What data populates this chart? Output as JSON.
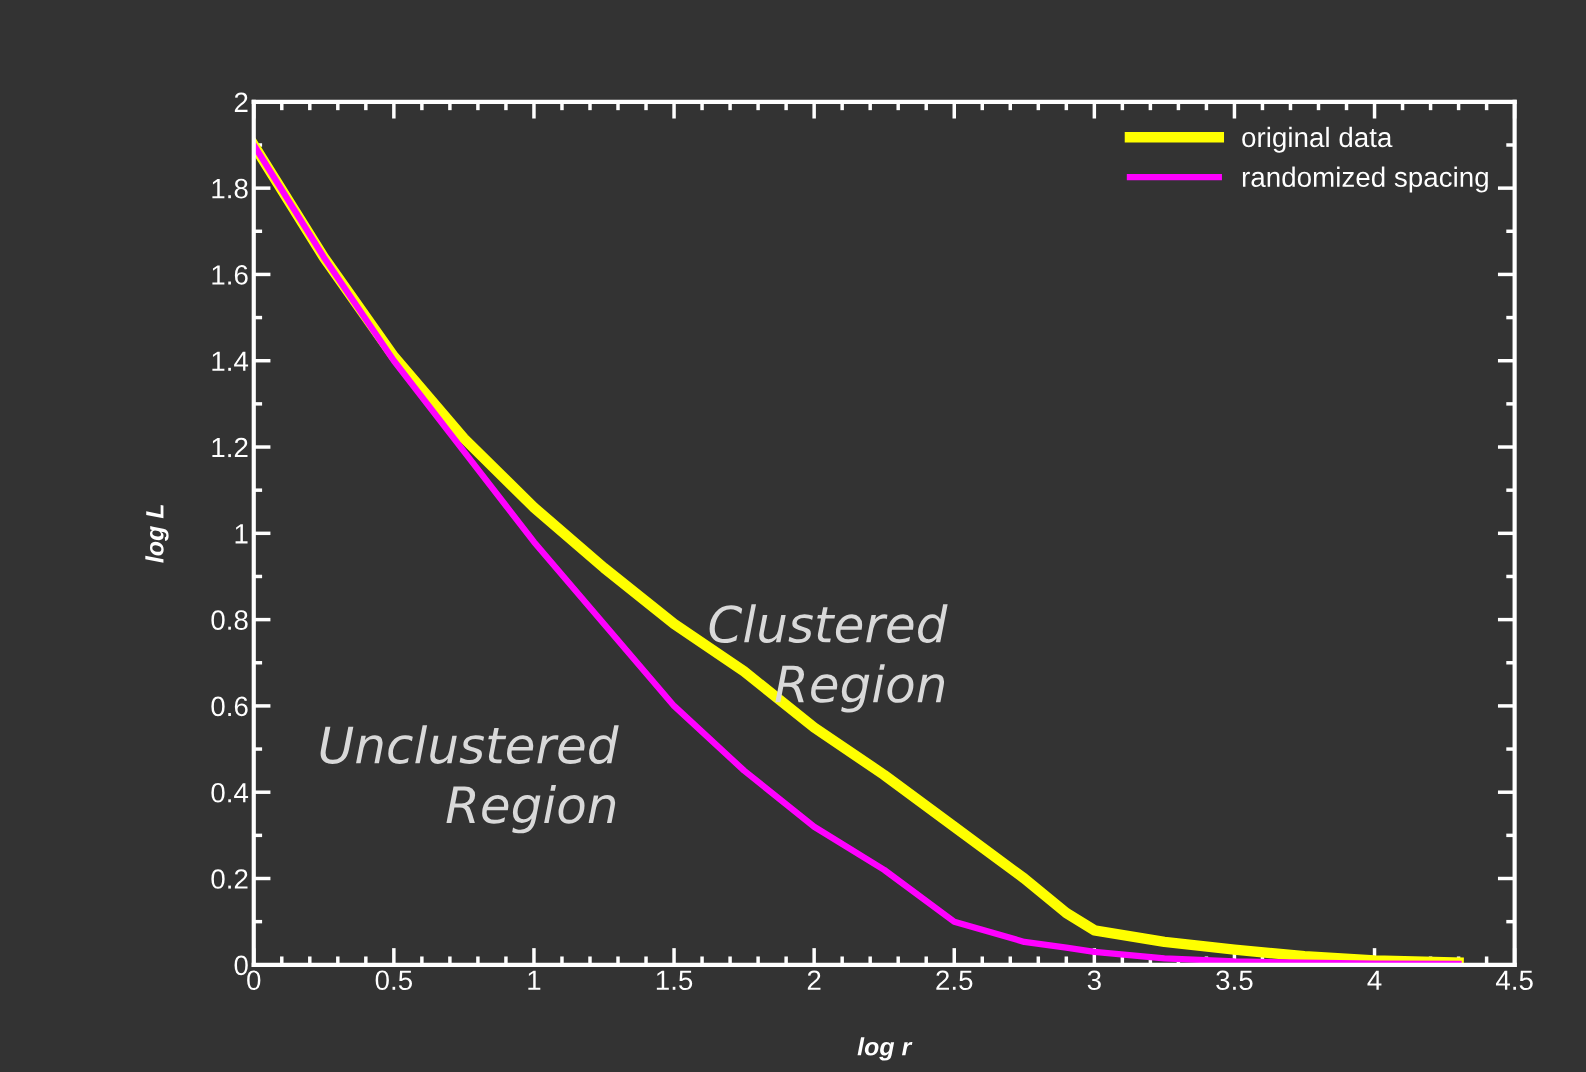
{
  "chart_data": {
    "type": "line",
    "xlabel": "log r",
    "ylabel": "log L",
    "xlim": [
      0,
      4.5
    ],
    "xticks": [
      0,
      0.5,
      1,
      1.5,
      2,
      2.5,
      3,
      3.5,
      4,
      4.5
    ],
    "ylim": [
      0,
      2
    ],
    "yticks": [
      0,
      0.2,
      0.4,
      0.6,
      0.8,
      1,
      1.2,
      1.4,
      1.6,
      1.8,
      2
    ],
    "x": [
      0,
      0.25,
      0.5,
      0.75,
      1,
      1.25,
      1.5,
      1.75,
      2,
      2.25,
      2.5,
      2.75,
      2.9,
      3,
      3.25,
      3.5,
      3.75,
      4,
      4.3
    ],
    "series": [
      {
        "name": "original data",
        "color": "#ffff00",
        "values": [
          1.9,
          1.64,
          1.41,
          1.22,
          1.06,
          0.92,
          0.79,
          0.68,
          0.55,
          0.44,
          0.32,
          0.2,
          0.12,
          0.08,
          0.053,
          0.035,
          0.02,
          0.01,
          0.005
        ]
      },
      {
        "name": "randomized spacing",
        "color": "#ff00ff",
        "values": [
          1.9,
          1.64,
          1.4,
          1.19,
          0.98,
          0.79,
          0.6,
          0.45,
          0.32,
          0.22,
          0.1,
          0.053,
          0.04,
          0.03,
          0.015,
          0.008,
          0.005,
          0.003,
          0.002
        ]
      }
    ],
    "annotations": [
      "Clustered\nRegion",
      "Unclustered\nRegion"
    ],
    "legend": "top right",
    "grid": false,
    "line_style": "solid",
    "marker": "none"
  }
}
